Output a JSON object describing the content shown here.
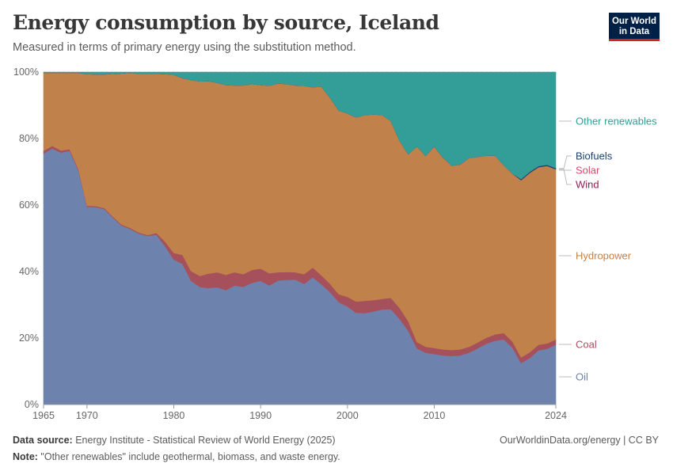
{
  "header": {
    "title": "Energy consumption by source, Iceland",
    "subtitle": "Measured in terms of primary energy using the substitution method.",
    "logo_line1": "Our World",
    "logo_line2": "in Data"
  },
  "footer": {
    "source_label": "Data source:",
    "source_text": " Energy Institute - Statistical Review of World Energy (2025)",
    "note_label": "Note:",
    "note_text": " \"Other renewables\" include geothermal, biomass, and waste energy.",
    "credit": "OurWorldinData.org/energy | CC BY"
  },
  "colors": {
    "oil": "#6d83ae",
    "coal": "#a6505c",
    "hydropower": "#c0824a",
    "wind": "#8f1d57",
    "solar": "#d9486b",
    "biofuels": "#1b3f6b",
    "other": "#339e98"
  },
  "chart_data": {
    "type": "area",
    "stacked": true,
    "title": "Energy consumption by source, Iceland",
    "xlabel": "",
    "ylabel": "",
    "ylim": [
      0,
      100
    ],
    "y_unit": "%",
    "y_ticks": [
      "0%",
      "20%",
      "40%",
      "60%",
      "80%",
      "100%"
    ],
    "x_ticks": [
      "1965",
      "1970",
      "1980",
      "1990",
      "2000",
      "2010",
      "2024"
    ],
    "grid": true,
    "x": [
      1965,
      1966,
      1967,
      1968,
      1969,
      1970,
      1971,
      1972,
      1973,
      1974,
      1975,
      1976,
      1977,
      1978,
      1979,
      1980,
      1981,
      1982,
      1983,
      1984,
      1985,
      1986,
      1987,
      1988,
      1989,
      1990,
      1991,
      1992,
      1993,
      1994,
      1995,
      1996,
      1997,
      1998,
      1999,
      2000,
      2001,
      2002,
      2003,
      2004,
      2005,
      2006,
      2007,
      2008,
      2009,
      2010,
      2011,
      2012,
      2013,
      2014,
      2015,
      2016,
      2017,
      2018,
      2019,
      2020,
      2021,
      2022,
      2023,
      2024
    ],
    "series": [
      {
        "name": "Oil",
        "values": [
          75.5,
          77,
          75.8,
          76.3,
          70.5,
          59.5,
          59.4,
          58.8,
          56.2,
          53.8,
          52.8,
          51.4,
          50.7,
          51.1,
          47.6,
          43.6,
          42.3,
          37.2,
          35.4,
          35,
          35.3,
          34.4,
          35.8,
          35.4,
          36.6,
          37.2,
          35.8,
          37.3,
          37.5,
          37.6,
          36.3,
          38.3,
          36.2,
          33.8,
          30.8,
          29.5,
          27.6,
          27.5,
          28,
          28.6,
          28.7,
          25.8,
          22.2,
          16.9,
          15.6,
          15.2,
          14.8,
          14.6,
          14.8,
          15.6,
          16.9,
          18.3,
          19.2,
          19.6,
          17.1,
          12.5,
          14,
          16.3,
          16.8,
          18
        ]
      },
      {
        "name": "Coal",
        "values": [
          0.8,
          0.8,
          0.6,
          0.5,
          0.4,
          0.3,
          0.3,
          0.3,
          0.3,
          0.3,
          0.3,
          0.3,
          0.3,
          0.5,
          1.4,
          2,
          2.7,
          2.9,
          3.3,
          4.4,
          4.5,
          4.6,
          4,
          3.8,
          3.9,
          3.7,
          3.7,
          2.5,
          2.4,
          2.2,
          2.9,
          2.9,
          2.7,
          2.5,
          2.4,
          2.9,
          3.4,
          3.7,
          3.4,
          3.2,
          3.4,
          3.3,
          2.9,
          1.9,
          1.8,
          1.8,
          1.8,
          1.8,
          1.8,
          1.8,
          1.8,
          1.8,
          1.9,
          1.9,
          1.9,
          1.7,
          1.7,
          1.7,
          1.6,
          1.6
        ]
      },
      {
        "name": "Hydropower",
        "values": [
          23.5,
          22,
          23.4,
          23,
          28.9,
          39.6,
          39.6,
          40.2,
          43,
          45.5,
          46.7,
          47.8,
          48.5,
          47.9,
          50.4,
          53.6,
          53.2,
          57.5,
          58.5,
          57.9,
          57,
          57.1,
          56.2,
          56.8,
          55.9,
          55.2,
          56.4,
          56.8,
          56.5,
          56.2,
          56.7,
          54.3,
          56.7,
          56,
          55.2,
          55.2,
          55.4,
          55.9,
          55.9,
          55.3,
          53.2,
          50.3,
          50.2,
          58.9,
          57.4,
          60.6,
          57.7,
          55.5,
          55.6,
          56.8,
          55.8,
          54.8,
          53.8,
          50.5,
          50.5,
          53.3,
          54,
          53.4,
          53.4,
          51.2
        ]
      },
      {
        "name": "Wind",
        "values": [
          0,
          0,
          0,
          0,
          0,
          0,
          0,
          0,
          0,
          0,
          0,
          0,
          0,
          0,
          0,
          0,
          0,
          0,
          0,
          0,
          0,
          0,
          0,
          0,
          0,
          0,
          0,
          0,
          0,
          0,
          0,
          0,
          0,
          0,
          0,
          0,
          0,
          0,
          0,
          0,
          0,
          0,
          0,
          0,
          0,
          0,
          0,
          0,
          0,
          0,
          0,
          0,
          0,
          0,
          0,
          0,
          0,
          0,
          0,
          0
        ]
      },
      {
        "name": "Solar",
        "values": [
          0,
          0,
          0,
          0,
          0,
          0,
          0,
          0,
          0,
          0,
          0,
          0,
          0,
          0,
          0,
          0,
          0,
          0,
          0,
          0,
          0,
          0,
          0,
          0,
          0,
          0,
          0,
          0,
          0,
          0,
          0,
          0,
          0,
          0,
          0,
          0,
          0,
          0,
          0,
          0,
          0,
          0,
          0,
          0,
          0,
          0,
          0,
          0,
          0,
          0,
          0,
          0,
          0,
          0,
          0,
          0,
          0,
          0,
          0,
          0
        ]
      },
      {
        "name": "Biofuels",
        "values": [
          0,
          0,
          0,
          0,
          0,
          0,
          0,
          0,
          0,
          0,
          0,
          0,
          0,
          0,
          0,
          0,
          0,
          0,
          0,
          0,
          0,
          0,
          0,
          0,
          0,
          0,
          0,
          0,
          0,
          0,
          0,
          0,
          0,
          0,
          0,
          0,
          0,
          0,
          0,
          0,
          0,
          0,
          0,
          0,
          0,
          0,
          0,
          0,
          0,
          0,
          0,
          0,
          0,
          0,
          0,
          0.3,
          0.3,
          0.3,
          0.3,
          0.3
        ]
      },
      {
        "name": "Other renewables",
        "values": [
          0.2,
          0.2,
          0.2,
          0.2,
          0.2,
          0.6,
          0.7,
          0.7,
          0.5,
          0.4,
          0.2,
          0.5,
          0.5,
          0.5,
          0.6,
          0.8,
          1.8,
          2.4,
          2.8,
          2.7,
          3.2,
          3.9,
          4,
          4,
          3.6,
          3.9,
          4.1,
          3.4,
          3.6,
          4,
          4.1,
          4.5,
          4.4,
          7.7,
          11.6,
          12.4,
          13.6,
          12.9,
          12.7,
          12.9,
          14.7,
          20.6,
          24.7,
          22.3,
          25.2,
          22.4,
          25.7,
          28.1,
          27.8,
          25.8,
          25.5,
          25.1,
          25.1,
          28,
          30.5,
          32.2,
          30,
          28.3,
          27.9,
          28.9
        ]
      }
    ],
    "legend": [
      "Other renewables",
      "Biofuels",
      "Solar",
      "Wind",
      "Hydropower",
      "Coal",
      "Oil"
    ],
    "legend_position": "right"
  }
}
